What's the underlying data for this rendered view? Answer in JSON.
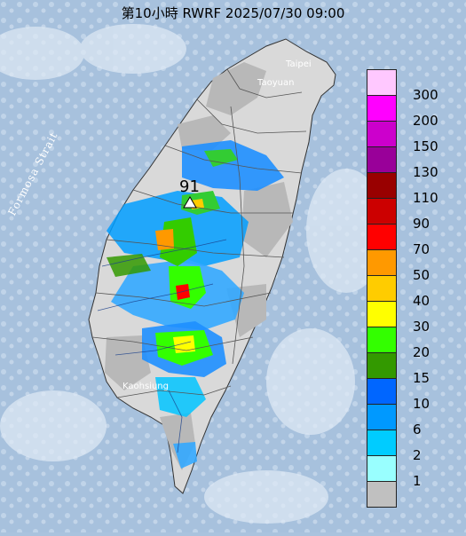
{
  "title": "第10小時  RWRF 2025/07/30 09:00",
  "labels": {
    "strait": "Formosa Strait",
    "taipei": "Taipei",
    "taoyuan": "Taoyuan",
    "kaohsiung": "Kaohsiung",
    "station_value": "91"
  },
  "legend": {
    "items": [
      {
        "label": "300",
        "color": "#ffc8ff"
      },
      {
        "label": "200",
        "color": "#ff00ff"
      },
      {
        "label": "150",
        "color": "#cc00cc"
      },
      {
        "label": "130",
        "color": "#990099"
      },
      {
        "label": "110",
        "color": "#990000"
      },
      {
        "label": "90",
        "color": "#cc0000"
      },
      {
        "label": "70",
        "color": "#ff0000"
      },
      {
        "label": "50",
        "color": "#ff9900"
      },
      {
        "label": "40",
        "color": "#ffcc00"
      },
      {
        "label": "30",
        "color": "#ffff00"
      },
      {
        "label": "20",
        "color": "#33ff00"
      },
      {
        "label": "15",
        "color": "#339900"
      },
      {
        "label": "10",
        "color": "#0066ff"
      },
      {
        "label": "6",
        "color": "#0099ff"
      },
      {
        "label": "2",
        "color": "#00ccff"
      },
      {
        "label": "1",
        "color": "#99ffff"
      },
      {
        "label": "",
        "color": "#c0c0c0"
      }
    ]
  }
}
